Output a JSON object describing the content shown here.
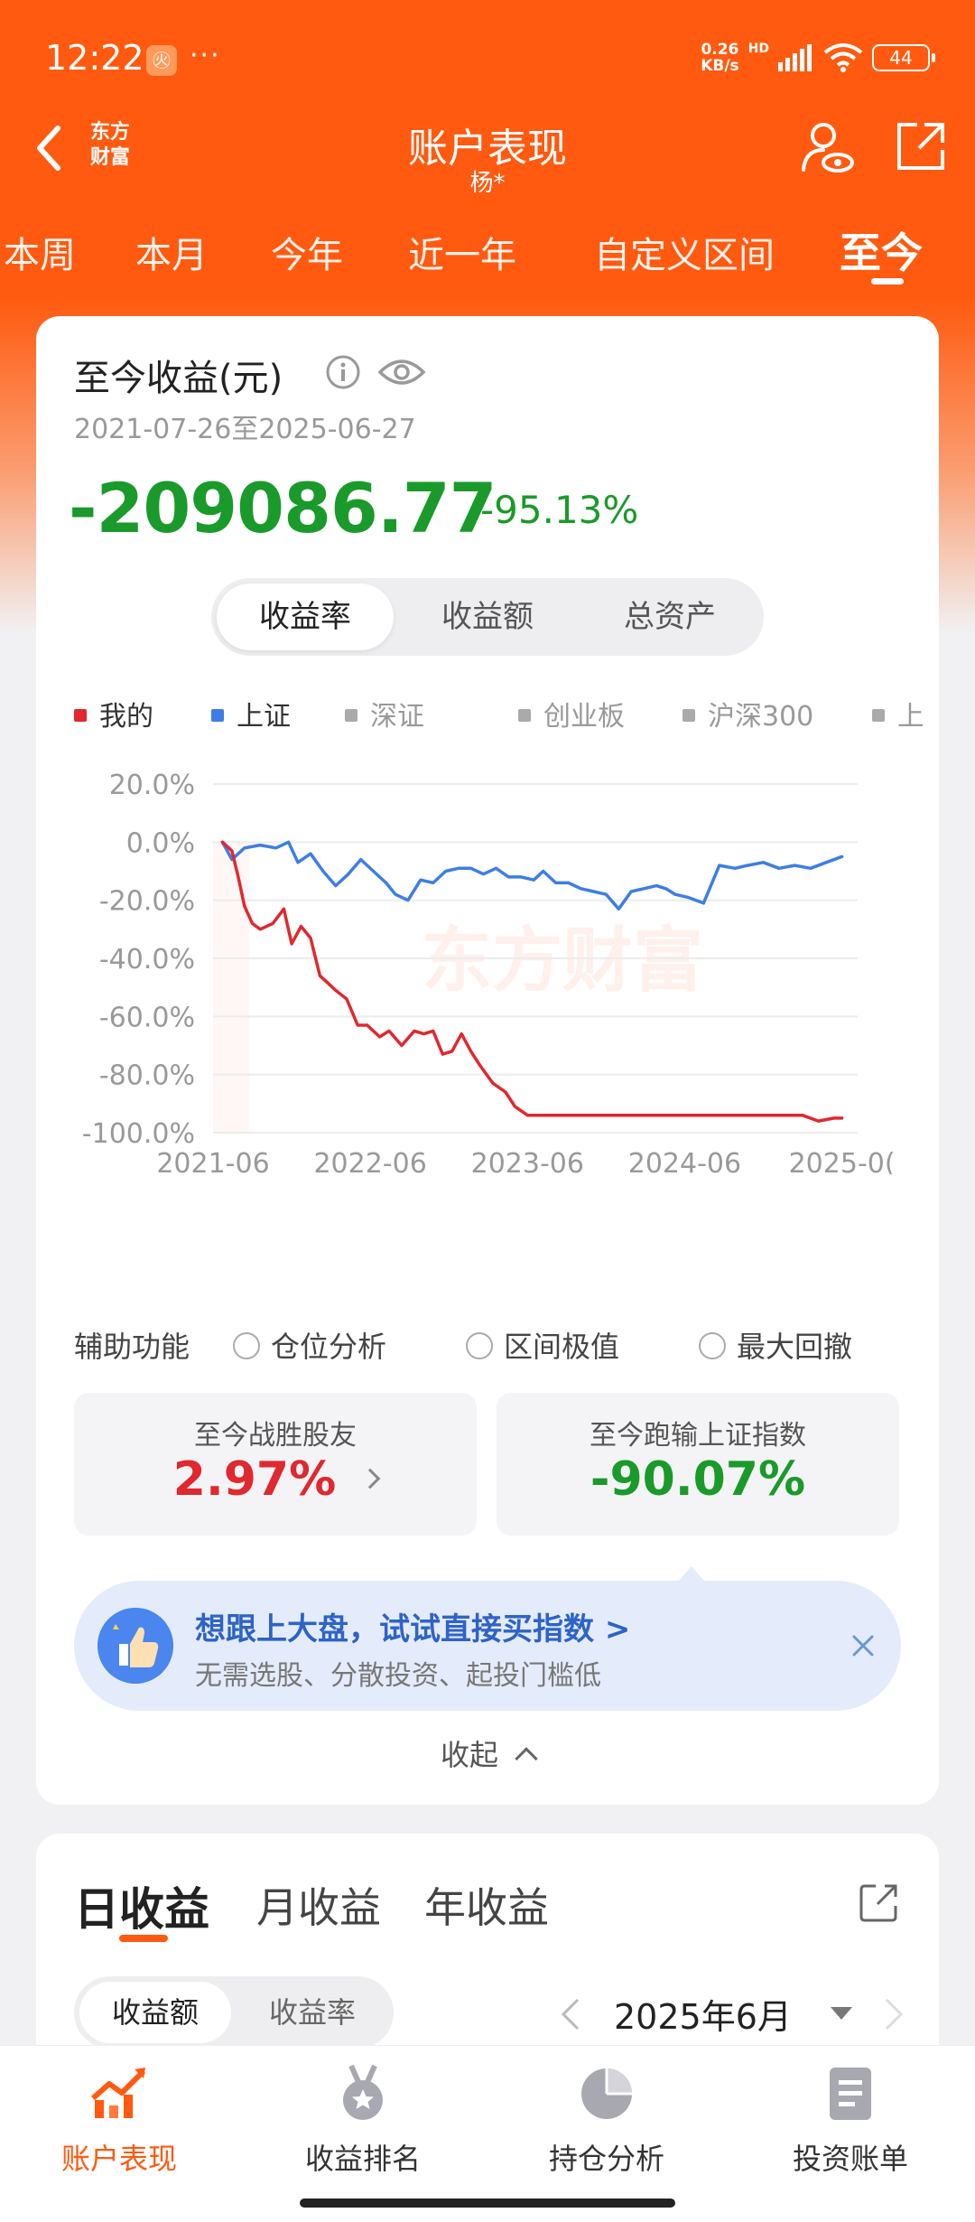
{
  "status_bar": {
    "time": "12:22",
    "app_badge": "㊋",
    "dots": "···",
    "net_speed_value": "0.26",
    "net_speed_unit": "KB/s",
    "hd": "HD",
    "battery": "44"
  },
  "header": {
    "logo_line1": "东方",
    "logo_line2": "财富",
    "title": "账户表现",
    "subtitle": "杨*"
  },
  "period_tabs": [
    {
      "label": "本周"
    },
    {
      "label": "本月"
    },
    {
      "label": "今年"
    },
    {
      "label": "近一年"
    },
    {
      "label": "自定义区间"
    },
    {
      "label": "至今",
      "active": true
    }
  ],
  "summary": {
    "title": "至今收益(元)",
    "date_range": "2021-07-26至2025-06-27",
    "profit": "-209086.77",
    "rate": "-95.13%"
  },
  "metric_tabs": [
    {
      "label": "收益率",
      "active": true
    },
    {
      "label": "收益额"
    },
    {
      "label": "总资产"
    }
  ],
  "legend": [
    {
      "label": "我的",
      "color": "#e0282e",
      "on": true
    },
    {
      "label": "上证",
      "color": "#3d7ee6",
      "on": true
    },
    {
      "label": "深证",
      "color": "#aaaaaa",
      "on": false
    },
    {
      "label": "创业板",
      "color": "#aaaaaa",
      "on": false
    },
    {
      "label": "沪深300",
      "color": "#aaaaaa",
      "on": false
    },
    {
      "label": "上",
      "color": "#aaaaaa",
      "on": false
    }
  ],
  "chart_data": {
    "type": "line",
    "y_tick_labels": [
      "20.0%",
      "0.0%",
      "-20.0%",
      "-40.0%",
      "-60.0%",
      "-80.0%",
      "-100.0%"
    ],
    "x_tick_labels": [
      "2021-06",
      "2022-06",
      "2023-06",
      "2024-06",
      "2025-0("
    ],
    "ylim": [
      -100,
      20
    ],
    "xlim": [
      2021.5,
      2025.6
    ],
    "grid": true,
    "watermark": "东方财富",
    "series": [
      {
        "name": "我的",
        "color": "#e0282e",
        "x": [
          2021.56,
          2021.62,
          2021.66,
          2021.7,
          2021.75,
          2021.8,
          2021.88,
          2021.95,
          2022.0,
          2022.06,
          2022.12,
          2022.18,
          2022.22,
          2022.28,
          2022.35,
          2022.42,
          2022.48,
          2022.56,
          2022.62,
          2022.7,
          2022.78,
          2022.84,
          2022.9,
          2022.96,
          2023.02,
          2023.08,
          2023.14,
          2023.2,
          2023.28,
          2023.36,
          2023.42,
          2023.5,
          2023.56,
          2023.64,
          2023.72,
          2023.8,
          2023.85,
          2023.9,
          2023.96,
          2024.1,
          2024.3,
          2024.5,
          2024.7,
          2024.9,
          2025.1,
          2025.25,
          2025.35,
          2025.45,
          2025.5
        ],
        "values": [
          0,
          -3,
          -12,
          -22,
          -28,
          -30,
          -28,
          -23,
          -35,
          -29,
          -33,
          -46,
          -48,
          -51,
          -54,
          -63,
          -63,
          -67,
          -65,
          -70,
          -65,
          -66,
          -65,
          -73,
          -72,
          -66,
          -72,
          -77,
          -83,
          -86,
          -91,
          -94,
          -94,
          -94,
          -94,
          -94,
          -94,
          -94,
          -94,
          -94,
          -94,
          -94,
          -94,
          -94,
          -94,
          -94,
          -96,
          -95,
          -95
        ]
      },
      {
        "name": "上证",
        "color": "#3d7ee6",
        "x": [
          2021.56,
          2021.62,
          2021.7,
          2021.8,
          2021.9,
          2021.98,
          2022.04,
          2022.12,
          2022.2,
          2022.28,
          2022.36,
          2022.44,
          2022.52,
          2022.6,
          2022.66,
          2022.74,
          2022.82,
          2022.9,
          2022.98,
          2023.06,
          2023.14,
          2023.22,
          2023.3,
          2023.38,
          2023.46,
          2023.54,
          2023.6,
          2023.68,
          2023.76,
          2023.84,
          2023.92,
          2024.0,
          2024.08,
          2024.16,
          2024.24,
          2024.32,
          2024.38,
          2024.44,
          2024.52,
          2024.62,
          2024.72,
          2024.82,
          2024.9,
          2025.0,
          2025.1,
          2025.2,
          2025.3,
          2025.4,
          2025.5
        ],
        "values": [
          0,
          -6,
          -2,
          -1,
          -2,
          0,
          -7,
          -4,
          -10,
          -15,
          -11,
          -6,
          -10,
          -14,
          -18,
          -20,
          -13,
          -14,
          -10,
          -9,
          -9,
          -11,
          -9,
          -12,
          -12,
          -13,
          -10,
          -14,
          -14,
          -16,
          -17,
          -18,
          -23,
          -17,
          -16,
          -15,
          -16,
          -18,
          -19,
          -21,
          -8,
          -9,
          -8,
          -7,
          -9,
          -8,
          -9,
          -7,
          -5
        ]
      }
    ]
  },
  "aux": {
    "label": "辅助功能",
    "options": [
      "仓位分析",
      "区间极值",
      "最大回撤"
    ]
  },
  "stats": {
    "beat_title": "至今战胜股友",
    "beat_value": "2.97%",
    "index_title": "至今跑输上证指数",
    "index_value": "-90.07%",
    "beat_color": "#e0282e",
    "index_color": "#1a9a2a"
  },
  "promo": {
    "title": "想跟上大盘，试试直接买指数 >",
    "subtitle": "无需选股、分散投资、起投门槛低"
  },
  "collapse_label": "收起",
  "daily": {
    "tabs": [
      {
        "label": "日收益",
        "active": true
      },
      {
        "label": "月收益"
      },
      {
        "label": "年收益"
      }
    ],
    "metric_tabs": [
      {
        "label": "收益额",
        "active": true
      },
      {
        "label": "收益率"
      }
    ],
    "month": "2025年6月"
  },
  "bottom_nav": [
    {
      "label": "账户表现",
      "icon": "chart-trend-icon",
      "active": true
    },
    {
      "label": "收益排名",
      "icon": "medal-icon"
    },
    {
      "label": "持仓分析",
      "icon": "pie-chart-icon"
    },
    {
      "label": "投资账单",
      "icon": "bill-icon"
    }
  ],
  "colors": {
    "brand": "#ff5a10",
    "down": "#1a9a2a",
    "up": "#e0282e",
    "link": "#2f63c6"
  }
}
